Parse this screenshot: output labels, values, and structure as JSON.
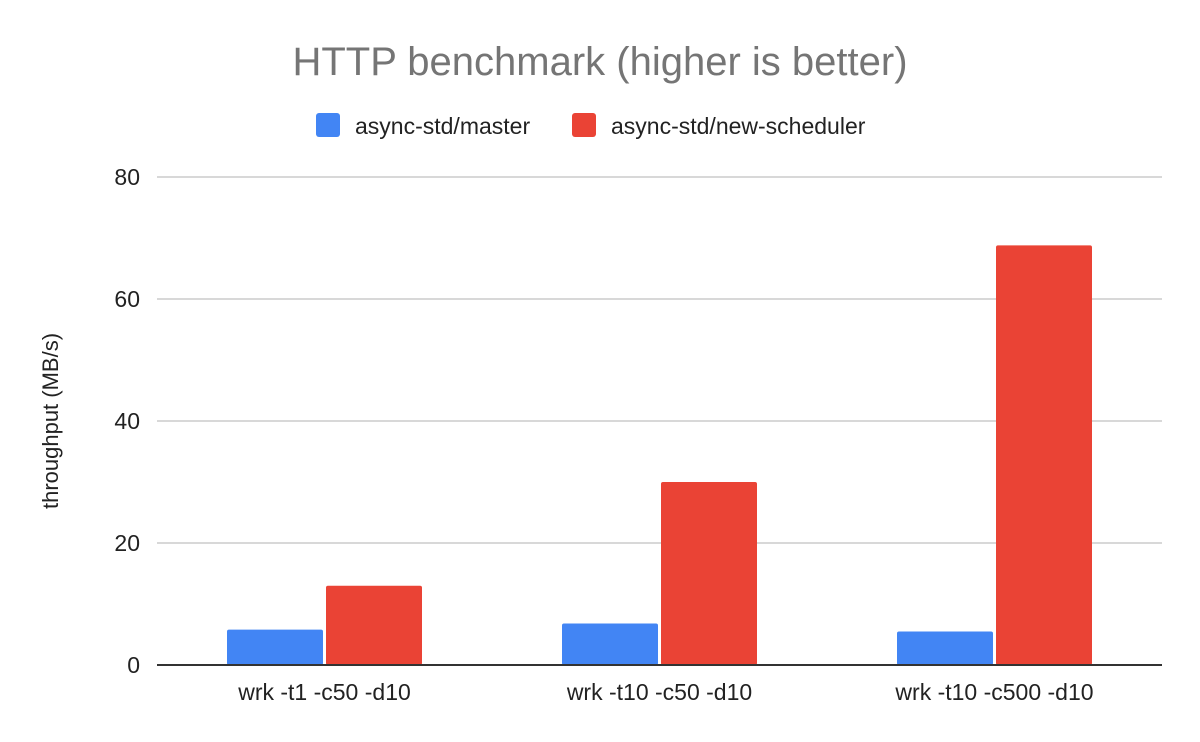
{
  "chart_data": {
    "type": "bar",
    "title": "HTTP benchmark (higher is better)",
    "xlabel": "",
    "ylabel": "throughput (MB/s)",
    "categories": [
      "wrk -t1 -c50 -d10",
      "wrk -t10 -c50 -d10",
      "wrk -t10 -c500 -d10"
    ],
    "series": [
      {
        "name": "async-std/master",
        "color": "#4285f4",
        "values": [
          5.8,
          6.8,
          5.5
        ]
      },
      {
        "name": "async-std/new-scheduler",
        "color": "#ea4335",
        "values": [
          13.0,
          30.0,
          68.8
        ]
      }
    ],
    "ylim": [
      0,
      80
    ],
    "yticks": [
      0,
      20,
      40,
      60,
      80
    ],
    "grid": true,
    "legend_position": "top"
  }
}
